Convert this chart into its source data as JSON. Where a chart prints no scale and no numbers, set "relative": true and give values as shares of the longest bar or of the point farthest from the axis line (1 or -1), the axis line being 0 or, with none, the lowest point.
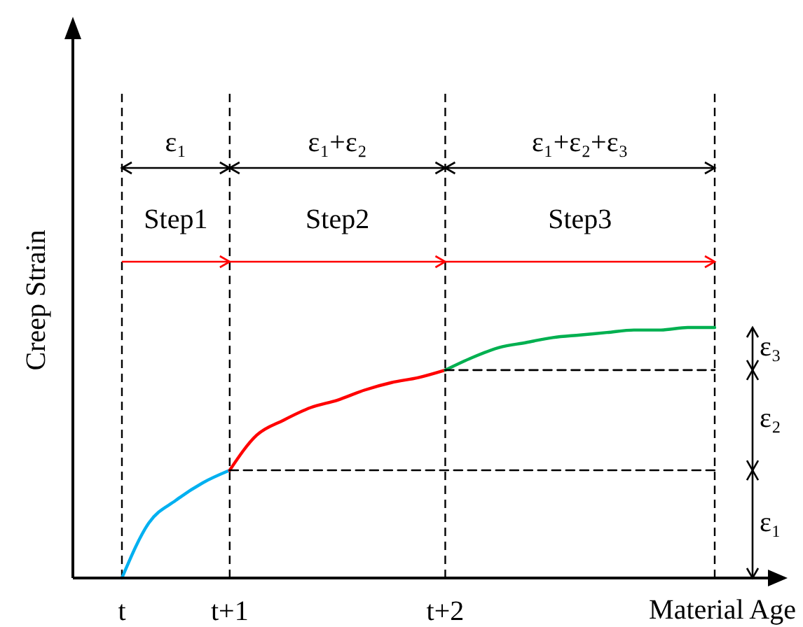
{
  "chart_data": {
    "type": "line",
    "relative": true,
    "xlabel": "Material Age",
    "ylabel": "Creep Strain",
    "categories": [
      "t",
      null,
      null,
      null,
      "t+1",
      null,
      null,
      null,
      null,
      null,
      null,
      null,
      "t+2",
      null,
      null,
      null,
      null,
      null,
      null,
      null,
      null,
      null,
      null
    ],
    "series": [
      {
        "color": "#00b0f0",
        "values": [
          0,
          0.22,
          0.31,
          0.38,
          0.43,
          null,
          null,
          null,
          null,
          null,
          null,
          null,
          null,
          null,
          null,
          null,
          null,
          null,
          null,
          null,
          null,
          null,
          null
        ]
      },
      {
        "color": "#ff0000",
        "values": [
          null,
          null,
          null,
          null,
          0.43,
          0.57,
          0.63,
          0.68,
          0.71,
          0.75,
          0.78,
          0.8,
          0.83,
          null,
          null,
          null,
          null,
          null,
          null,
          null,
          null,
          null,
          null
        ]
      },
      {
        "color": "#00b050",
        "values": [
          null,
          null,
          null,
          null,
          null,
          null,
          null,
          null,
          null,
          null,
          null,
          null,
          0.83,
          0.88,
          0.92,
          0.94,
          0.96,
          0.97,
          0.98,
          0.99,
          0.99,
          1,
          1
        ]
      },
      {
        "color": "#000000",
        "line_style": "dashed",
        "values": [
          null,
          null,
          null,
          null,
          0.43,
          0.43,
          0.43,
          0.43,
          0.43,
          0.43,
          0.43,
          0.43,
          0.43,
          0.43,
          0.43,
          0.43,
          0.43,
          0.43,
          0.43,
          0.43,
          0.43,
          0.43,
          0.43
        ]
      },
      {
        "color": "#000000",
        "line_style": "dashed",
        "values": [
          null,
          null,
          null,
          null,
          null,
          null,
          null,
          null,
          null,
          null,
          null,
          null,
          0.83,
          0.83,
          0.83,
          0.83,
          0.83,
          0.83,
          0.83,
          0.83,
          0.83,
          0.83,
          0.83
        ]
      }
    ],
    "annotations": [
      "ε₁",
      "ε₁+ε₂",
      "ε₁+ε₂+ε₃",
      "Step1",
      "Step2",
      "Step3",
      "ε₃",
      "ε₂",
      "ε₁"
    ]
  }
}
